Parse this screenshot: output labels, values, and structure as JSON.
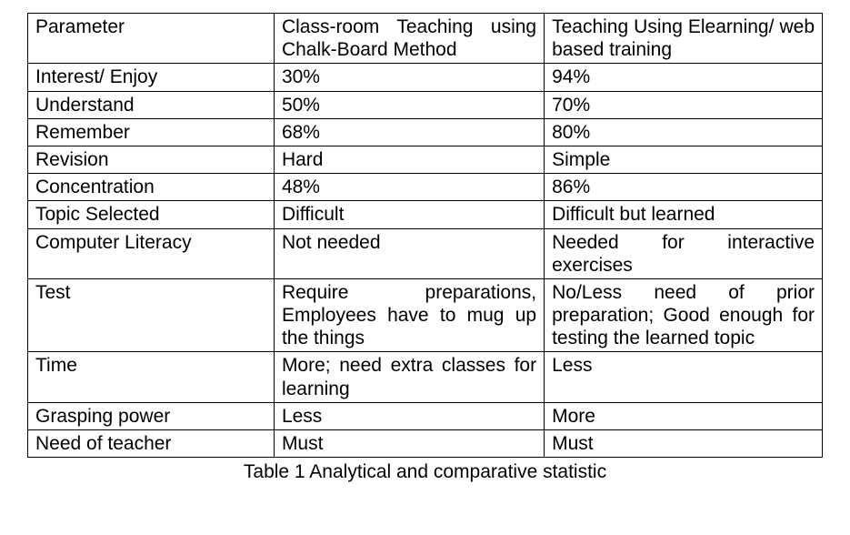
{
  "table": {
    "columns": [
      "Parameter",
      "Class-room Teaching using Chalk-Board Method",
      "Teaching Using Elearning/ web based training"
    ],
    "rows": [
      [
        "Interest/ Enjoy",
        "30%",
        "94%"
      ],
      [
        "Understand",
        "50%",
        "70%"
      ],
      [
        "Remember",
        "68%",
        "80%"
      ],
      [
        "Revision",
        "Hard",
        "Simple"
      ],
      [
        "Concentration",
        "48%",
        "86%"
      ],
      [
        "Topic Selected",
        "Difficult",
        "Difficult but learned"
      ],
      [
        "Computer Literacy",
        "Not needed",
        "Needed for interactive exercises"
      ],
      [
        "Test",
        "Require preparations, Employees have to mug up the things",
        "No/Less need of prior preparation; Good enough for testing the learned topic"
      ],
      [
        "Time",
        "More; need extra classes for learning",
        "Less"
      ],
      [
        "Grasping power",
        "Less",
        "More"
      ],
      [
        "Need of teacher",
        "Must",
        "Must"
      ]
    ],
    "caption": "Table 1 Analytical and comparative statistic",
    "border_color": "#000000",
    "background_color": "#ffffff",
    "text_color": "#000000",
    "font_size_pt": 16,
    "font_family": "Arial",
    "col_widths_pct": [
      31,
      34,
      35
    ]
  }
}
